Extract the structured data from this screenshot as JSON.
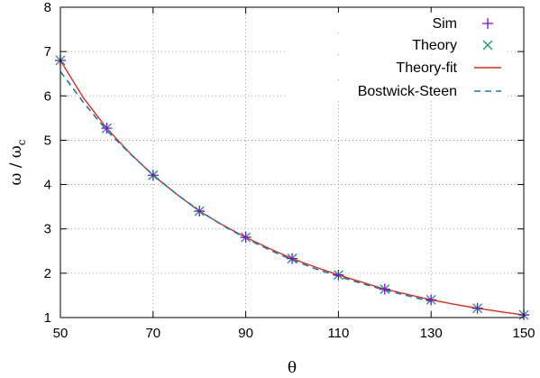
{
  "chart_data": {
    "type": "line",
    "xlabel": "θ",
    "ylabel": "ω / ω",
    "ylabel_sub": "c",
    "xlim": [
      50,
      150
    ],
    "ylim": [
      1,
      8
    ],
    "xticks": [
      50,
      70,
      90,
      110,
      130,
      150
    ],
    "yticks": [
      1,
      2,
      3,
      4,
      5,
      6,
      7,
      8
    ],
    "grid": true,
    "legend_position": "top-right",
    "series": [
      {
        "name": "Sim",
        "style": "markers-plus",
        "color": "#9400d3",
        "x": [
          50,
          60,
          70,
          80,
          90,
          100,
          110,
          120,
          130,
          140,
          150
        ],
        "y": [
          6.8,
          5.27,
          4.21,
          3.4,
          2.81,
          2.33,
          1.96,
          1.64,
          1.4,
          1.21,
          1.06
        ]
      },
      {
        "name": "Theory",
        "style": "markers-x",
        "color": "#009e73",
        "x": [
          50,
          60,
          70,
          80,
          90,
          100,
          110,
          120,
          130,
          140,
          150
        ],
        "y": [
          6.8,
          5.27,
          4.21,
          3.4,
          2.81,
          2.33,
          1.96,
          1.64,
          1.4,
          1.21,
          1.06
        ]
      },
      {
        "name": "Theory-fit",
        "style": "line-solid",
        "color": "#e3291b",
        "x": [
          50,
          55,
          60,
          65,
          70,
          75,
          80,
          85,
          90,
          95,
          100,
          105,
          110,
          115,
          120,
          125,
          130,
          135,
          140,
          145,
          150
        ],
        "y": [
          6.8,
          5.95,
          5.27,
          4.71,
          4.21,
          3.79,
          3.4,
          3.09,
          2.81,
          2.56,
          2.33,
          2.14,
          1.96,
          1.8,
          1.64,
          1.52,
          1.4,
          1.3,
          1.21,
          1.13,
          1.06
        ]
      },
      {
        "name": "Bostwick-Steen",
        "style": "line-dashed",
        "color": "#1a7ca8",
        "x": [
          50,
          55,
          60,
          65,
          70,
          75,
          80,
          85,
          90,
          95,
          100,
          105,
          110,
          115,
          120,
          125,
          130
        ],
        "y": [
          6.55,
          5.85,
          5.22,
          4.7,
          4.22,
          3.79,
          3.41,
          3.08,
          2.79,
          2.53,
          2.3,
          2.1,
          1.93,
          1.77,
          1.62,
          1.49,
          1.36
        ]
      }
    ]
  }
}
